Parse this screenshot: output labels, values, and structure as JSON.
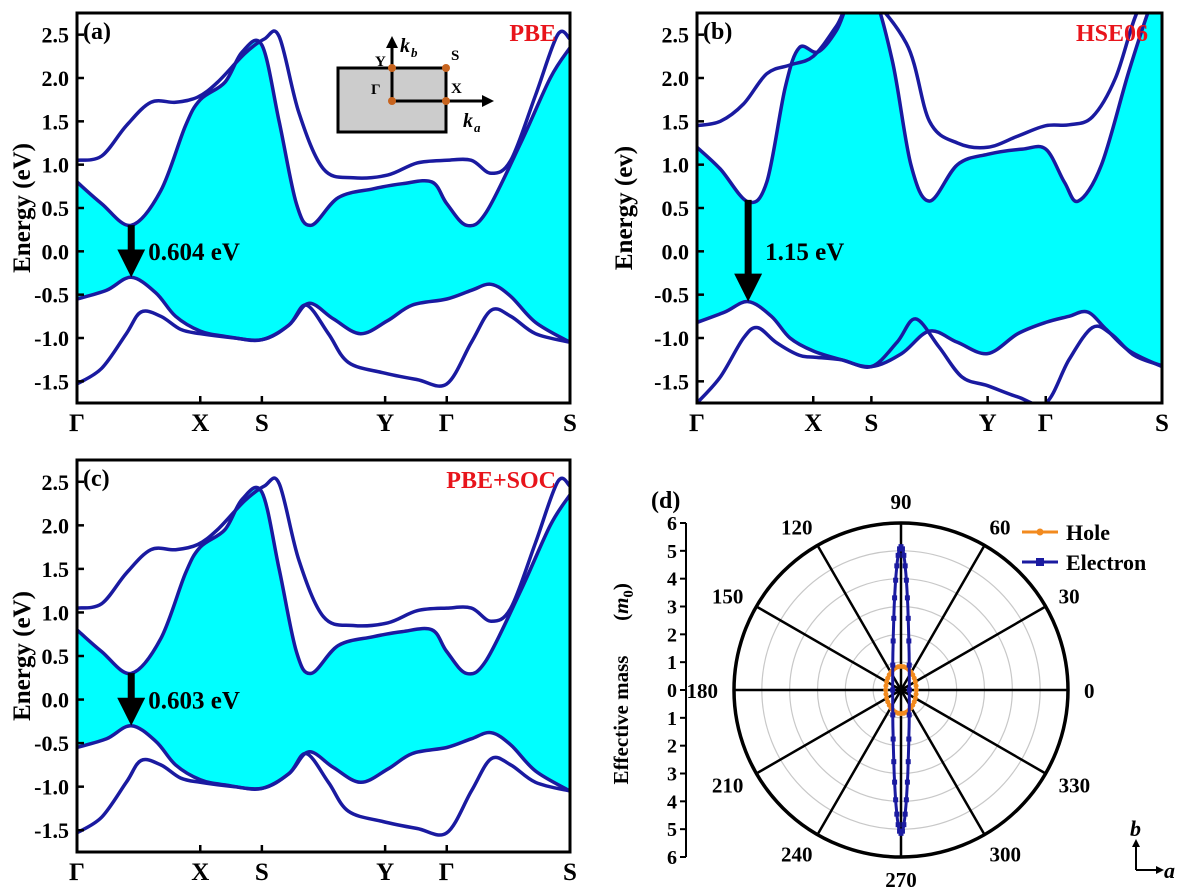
{
  "chart_data": [
    {
      "type": "line",
      "panel_label": "(a)",
      "method": "PBE",
      "ylabel": "Energy (eV)",
      "ylim": [
        -1.75,
        2.75
      ],
      "yticks": [
        "2.5",
        "2.0",
        "1.5",
        "1.0",
        "0.5",
        "0.0",
        "-0.5",
        "-1.0",
        "-1.5"
      ],
      "xlabels": [
        "Γ",
        "X",
        "S",
        "Y",
        "Γ",
        "S"
      ],
      "xpos": [
        0,
        0.25,
        0.375,
        0.625,
        0.75,
        1.0
      ],
      "gap_label": "0.604 eV",
      "arrow_x": 0.11,
      "arrow_from": 0.28,
      "arrow_to": -0.3,
      "fill_color": "#00ffff",
      "line_color": "#1a1aa0",
      "conduction_bands": [
        [
          [
            0,
            0.8
          ],
          [
            0.05,
            0.55
          ],
          [
            0.11,
            0.3
          ],
          [
            0.17,
            0.7
          ],
          [
            0.22,
            1.45
          ],
          [
            0.25,
            1.75
          ],
          [
            0.3,
            1.95
          ],
          [
            0.335,
            2.3
          ],
          [
            0.375,
            2.38
          ],
          [
            0.41,
            1.5
          ],
          [
            0.445,
            0.55
          ],
          [
            0.475,
            0.3
          ],
          [
            0.53,
            0.62
          ],
          [
            0.6,
            0.72
          ],
          [
            0.66,
            0.78
          ],
          [
            0.72,
            0.8
          ],
          [
            0.75,
            0.55
          ],
          [
            0.79,
            0.3
          ],
          [
            0.83,
            0.45
          ],
          [
            0.9,
            1.25
          ],
          [
            0.96,
            2.0
          ],
          [
            1.0,
            2.35
          ]
        ],
        [
          [
            0,
            1.05
          ],
          [
            0.05,
            1.1
          ],
          [
            0.1,
            1.45
          ],
          [
            0.15,
            1.72
          ],
          [
            0.2,
            1.72
          ],
          [
            0.245,
            1.78
          ],
          [
            0.285,
            1.95
          ],
          [
            0.34,
            2.28
          ],
          [
            0.38,
            2.45
          ],
          [
            0.41,
            2.48
          ],
          [
            0.45,
            1.6
          ],
          [
            0.5,
            0.95
          ],
          [
            0.56,
            0.85
          ],
          [
            0.63,
            0.88
          ],
          [
            0.69,
            1.02
          ],
          [
            0.75,
            1.05
          ],
          [
            0.8,
            1.05
          ],
          [
            0.84,
            0.9
          ],
          [
            0.88,
            1.05
          ],
          [
            0.93,
            1.8
          ],
          [
            0.975,
            2.5
          ],
          [
            1.0,
            2.45
          ]
        ]
      ],
      "valence_bands": [
        [
          [
            0,
            -0.55
          ],
          [
            0.06,
            -0.45
          ],
          [
            0.11,
            -0.3
          ],
          [
            0.16,
            -0.48
          ],
          [
            0.2,
            -0.75
          ],
          [
            0.25,
            -0.92
          ],
          [
            0.3,
            -0.98
          ],
          [
            0.375,
            -1.02
          ],
          [
            0.43,
            -0.85
          ],
          [
            0.47,
            -0.6
          ],
          [
            0.52,
            -0.78
          ],
          [
            0.575,
            -0.95
          ],
          [
            0.63,
            -0.8
          ],
          [
            0.68,
            -0.62
          ],
          [
            0.75,
            -0.55
          ],
          [
            0.8,
            -0.45
          ],
          [
            0.84,
            -0.38
          ],
          [
            0.88,
            -0.52
          ],
          [
            0.93,
            -0.82
          ],
          [
            1.0,
            -1.05
          ]
        ],
        [
          [
            0,
            -1.53
          ],
          [
            0.05,
            -1.35
          ],
          [
            0.1,
            -0.95
          ],
          [
            0.13,
            -0.7
          ],
          [
            0.17,
            -0.75
          ],
          [
            0.21,
            -0.9
          ],
          [
            0.25,
            -0.95
          ],
          [
            0.32,
            -1.0
          ],
          [
            0.375,
            -1.02
          ],
          [
            0.43,
            -0.85
          ],
          [
            0.465,
            -0.62
          ],
          [
            0.51,
            -0.95
          ],
          [
            0.55,
            -1.28
          ],
          [
            0.62,
            -1.4
          ],
          [
            0.69,
            -1.48
          ],
          [
            0.75,
            -1.53
          ],
          [
            0.8,
            -1.05
          ],
          [
            0.84,
            -0.68
          ],
          [
            0.88,
            -0.75
          ],
          [
            0.93,
            -0.95
          ],
          [
            1.0,
            -1.05
          ]
        ]
      ]
    },
    {
      "type": "line",
      "panel_label": "(b)",
      "method": "HSE06",
      "ylabel": "Energy (ev)",
      "ylim": [
        -1.75,
        2.75
      ],
      "yticks": [
        "2.5",
        "2.0",
        "1.5",
        "1.0",
        "0.5",
        "0.0",
        "-0.5",
        "-1.0",
        "-1.5"
      ],
      "xlabels": [
        "Γ",
        "X",
        "S",
        "Y",
        "Γ",
        "S"
      ],
      "xpos": [
        0,
        0.25,
        0.375,
        0.625,
        0.75,
        1.0
      ],
      "gap_label": "1.15 eV",
      "arrow_x": 0.11,
      "arrow_from": 0.57,
      "arrow_to": -0.58,
      "fill_color": "#00ffff",
      "line_color": "#1a1aa0",
      "conduction_bands": [
        [
          [
            0,
            1.2
          ],
          [
            0.05,
            0.95
          ],
          [
            0.11,
            0.57
          ],
          [
            0.15,
            0.8
          ],
          [
            0.19,
            1.9
          ],
          [
            0.22,
            2.35
          ],
          [
            0.26,
            2.3
          ],
          [
            0.3,
            2.55
          ],
          [
            0.33,
            2.9
          ],
          [
            0.375,
            3.0
          ],
          [
            0.42,
            2.2
          ],
          [
            0.46,
            1.0
          ],
          [
            0.5,
            0.58
          ],
          [
            0.56,
            1.0
          ],
          [
            0.625,
            1.12
          ],
          [
            0.7,
            1.18
          ],
          [
            0.75,
            1.18
          ],
          [
            0.79,
            0.8
          ],
          [
            0.82,
            0.58
          ],
          [
            0.87,
            1.0
          ],
          [
            0.93,
            2.1
          ],
          [
            0.98,
            2.9
          ],
          [
            1.0,
            3.0
          ]
        ],
        [
          [
            0,
            1.45
          ],
          [
            0.05,
            1.5
          ],
          [
            0.1,
            1.7
          ],
          [
            0.15,
            2.05
          ],
          [
            0.2,
            2.15
          ],
          [
            0.25,
            2.25
          ],
          [
            0.3,
            2.6
          ],
          [
            0.35,
            3.0
          ],
          [
            0.45,
            2.4
          ],
          [
            0.5,
            1.5
          ],
          [
            0.56,
            1.25
          ],
          [
            0.625,
            1.2
          ],
          [
            0.69,
            1.33
          ],
          [
            0.75,
            1.45
          ],
          [
            0.8,
            1.46
          ],
          [
            0.85,
            1.55
          ],
          [
            0.9,
            2.0
          ],
          [
            0.95,
            2.8
          ],
          [
            1.0,
            3.0
          ]
        ]
      ],
      "valence_bands": [
        [
          [
            0,
            -0.82
          ],
          [
            0.06,
            -0.7
          ],
          [
            0.11,
            -0.58
          ],
          [
            0.16,
            -0.75
          ],
          [
            0.2,
            -1.0
          ],
          [
            0.25,
            -1.15
          ],
          [
            0.31,
            -1.25
          ],
          [
            0.375,
            -1.33
          ],
          [
            0.44,
            -1.18
          ],
          [
            0.5,
            -0.92
          ],
          [
            0.56,
            -1.05
          ],
          [
            0.625,
            -1.18
          ],
          [
            0.69,
            -0.95
          ],
          [
            0.75,
            -0.82
          ],
          [
            0.8,
            -0.75
          ],
          [
            0.84,
            -0.7
          ],
          [
            0.88,
            -0.9
          ],
          [
            0.93,
            -1.15
          ],
          [
            1.0,
            -1.33
          ]
        ],
        [
          [
            0,
            -1.75
          ],
          [
            0.05,
            -1.45
          ],
          [
            0.1,
            -1.0
          ],
          [
            0.13,
            -0.88
          ],
          [
            0.17,
            -1.05
          ],
          [
            0.22,
            -1.2
          ],
          [
            0.25,
            -1.22
          ],
          [
            0.31,
            -1.25
          ],
          [
            0.375,
            -1.33
          ],
          [
            0.43,
            -1.05
          ],
          [
            0.47,
            -0.78
          ],
          [
            0.52,
            -1.1
          ],
          [
            0.57,
            -1.45
          ],
          [
            0.625,
            -1.55
          ],
          [
            0.69,
            -1.68
          ],
          [
            0.75,
            -1.75
          ],
          [
            0.8,
            -1.25
          ],
          [
            0.85,
            -0.88
          ],
          [
            0.89,
            -0.95
          ],
          [
            0.94,
            -1.2
          ],
          [
            1.0,
            -1.32
          ]
        ]
      ]
    },
    {
      "type": "line",
      "panel_label": "(c)",
      "method": "PBE+SOC",
      "ylabel": "Energy (eV)",
      "ylim": [
        -1.75,
        2.75
      ],
      "yticks": [
        "2.5",
        "2.0",
        "1.5",
        "1.0",
        "0.5",
        "0.0",
        "-0.5",
        "-1.0",
        "-1.5"
      ],
      "xlabels": [
        "Γ",
        "X",
        "S",
        "Y",
        "Γ",
        "S"
      ],
      "xpos": [
        0,
        0.25,
        0.375,
        0.625,
        0.75,
        1.0
      ],
      "gap_label": "0.603 eV",
      "arrow_x": 0.11,
      "arrow_from": 0.28,
      "arrow_to": -0.3,
      "fill_color": "#00ffff",
      "line_color": "#1a1aa0",
      "conduction_bands": [
        [
          [
            0,
            0.8
          ],
          [
            0.05,
            0.55
          ],
          [
            0.11,
            0.3
          ],
          [
            0.17,
            0.7
          ],
          [
            0.22,
            1.45
          ],
          [
            0.25,
            1.75
          ],
          [
            0.3,
            1.95
          ],
          [
            0.335,
            2.3
          ],
          [
            0.375,
            2.38
          ],
          [
            0.41,
            1.5
          ],
          [
            0.445,
            0.55
          ],
          [
            0.475,
            0.3
          ],
          [
            0.53,
            0.62
          ],
          [
            0.6,
            0.72
          ],
          [
            0.66,
            0.78
          ],
          [
            0.72,
            0.8
          ],
          [
            0.75,
            0.55
          ],
          [
            0.79,
            0.3
          ],
          [
            0.83,
            0.45
          ],
          [
            0.9,
            1.25
          ],
          [
            0.96,
            2.0
          ],
          [
            1.0,
            2.35
          ]
        ],
        [
          [
            0,
            1.05
          ],
          [
            0.05,
            1.1
          ],
          [
            0.1,
            1.45
          ],
          [
            0.15,
            1.72
          ],
          [
            0.2,
            1.72
          ],
          [
            0.245,
            1.78
          ],
          [
            0.285,
            1.95
          ],
          [
            0.34,
            2.28
          ],
          [
            0.38,
            2.45
          ],
          [
            0.41,
            2.48
          ],
          [
            0.45,
            1.6
          ],
          [
            0.5,
            0.95
          ],
          [
            0.56,
            0.85
          ],
          [
            0.63,
            0.88
          ],
          [
            0.69,
            1.02
          ],
          [
            0.75,
            1.05
          ],
          [
            0.8,
            1.05
          ],
          [
            0.84,
            0.9
          ],
          [
            0.88,
            1.05
          ],
          [
            0.93,
            1.8
          ],
          [
            0.975,
            2.5
          ],
          [
            1.0,
            2.45
          ]
        ]
      ],
      "valence_bands": [
        [
          [
            0,
            -0.55
          ],
          [
            0.06,
            -0.45
          ],
          [
            0.11,
            -0.3
          ],
          [
            0.16,
            -0.48
          ],
          [
            0.2,
            -0.75
          ],
          [
            0.25,
            -0.92
          ],
          [
            0.3,
            -0.98
          ],
          [
            0.375,
            -1.02
          ],
          [
            0.43,
            -0.85
          ],
          [
            0.47,
            -0.6
          ],
          [
            0.52,
            -0.78
          ],
          [
            0.575,
            -0.95
          ],
          [
            0.63,
            -0.8
          ],
          [
            0.68,
            -0.62
          ],
          [
            0.75,
            -0.55
          ],
          [
            0.8,
            -0.45
          ],
          [
            0.84,
            -0.38
          ],
          [
            0.88,
            -0.52
          ],
          [
            0.93,
            -0.82
          ],
          [
            1.0,
            -1.05
          ]
        ],
        [
          [
            0,
            -1.53
          ],
          [
            0.05,
            -1.35
          ],
          [
            0.1,
            -0.95
          ],
          [
            0.13,
            -0.7
          ],
          [
            0.17,
            -0.75
          ],
          [
            0.21,
            -0.9
          ],
          [
            0.25,
            -0.95
          ],
          [
            0.32,
            -1.0
          ],
          [
            0.375,
            -1.02
          ],
          [
            0.43,
            -0.85
          ],
          [
            0.465,
            -0.62
          ],
          [
            0.51,
            -0.95
          ],
          [
            0.55,
            -1.28
          ],
          [
            0.62,
            -1.4
          ],
          [
            0.69,
            -1.48
          ],
          [
            0.75,
            -1.53
          ],
          [
            0.8,
            -1.05
          ],
          [
            0.84,
            -0.68
          ],
          [
            0.88,
            -0.75
          ],
          [
            0.93,
            -0.95
          ],
          [
            1.0,
            -1.05
          ]
        ]
      ]
    },
    {
      "type": "polar",
      "panel_label": "(d)",
      "ylabel": "Effective mass(m0)",
      "rlim": [
        0,
        6
      ],
      "rticks": [
        "6",
        "5",
        "4",
        "3",
        "2",
        "1",
        "0",
        "1",
        "2",
        "3",
        "4",
        "5",
        "6"
      ],
      "angle_labels": [
        "0",
        "30",
        "60",
        "90",
        "120",
        "150",
        "180",
        "210",
        "240",
        "270",
        "300",
        "330"
      ],
      "series": [
        {
          "name": "Hole",
          "color": "#f28a1e",
          "a": 0.55,
          "b": 0.85
        },
        {
          "name": "Electron",
          "color": "#1a1aa0",
          "a": 0.3,
          "b": 5.15
        }
      ],
      "axes_labels": [
        "b",
        "a"
      ]
    }
  ],
  "inset": {
    "labels": [
      "Y",
      "k_b",
      "S",
      "Γ",
      "X",
      "k_a"
    ],
    "fill": "#cccccc",
    "dot_color": "#c8641e"
  }
}
